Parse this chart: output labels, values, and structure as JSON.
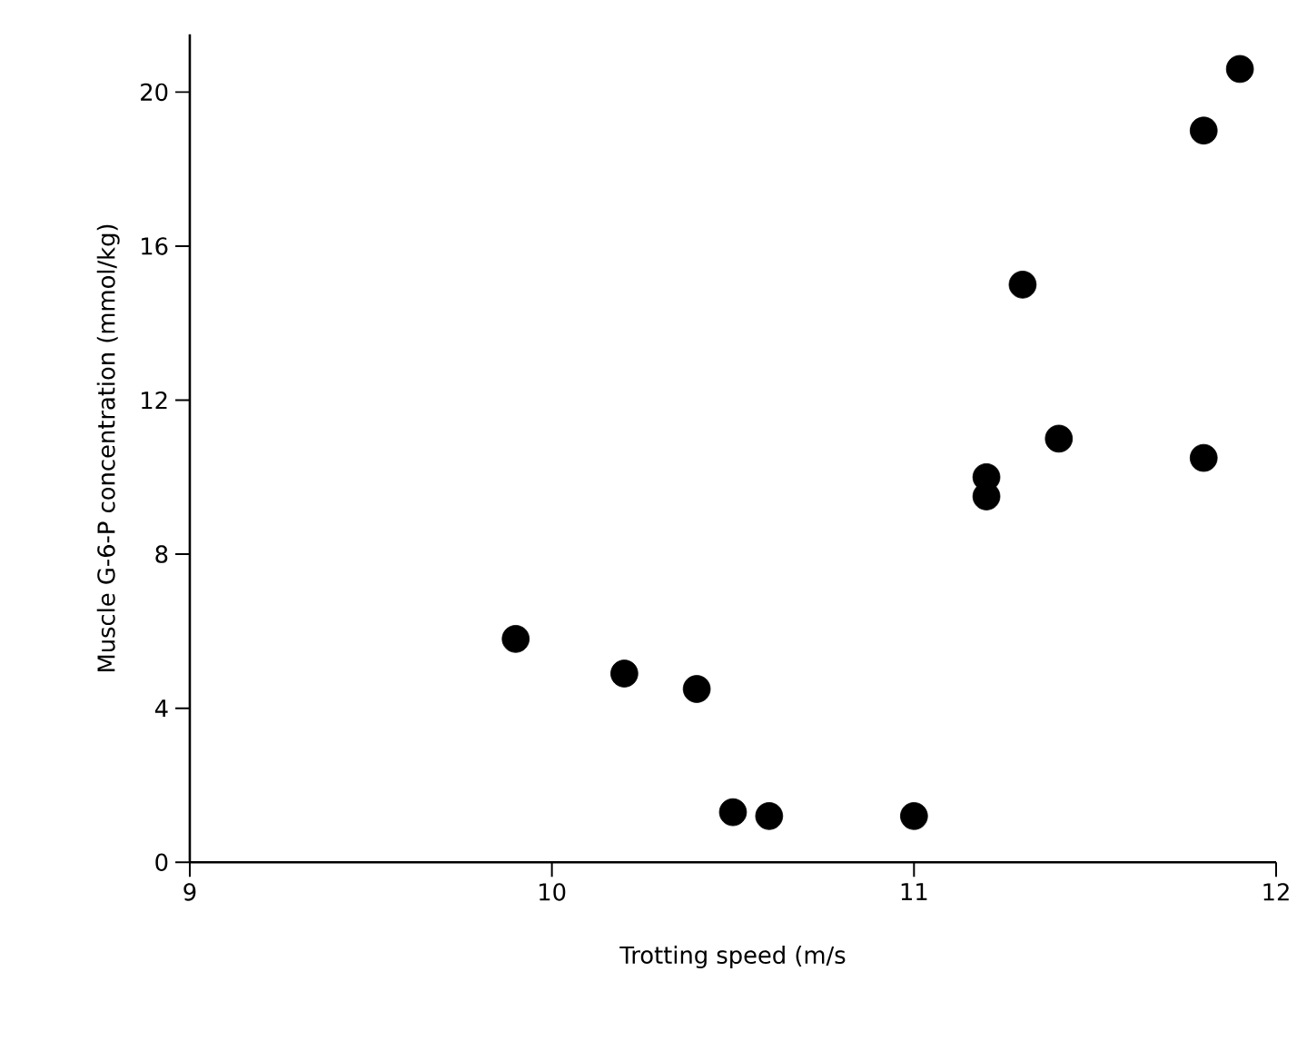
{
  "chart_data": {
    "type": "scatter",
    "xlabel": "Trotting speed  (m/s",
    "ylabel": "Muscle G-6-P concentration (mmol/kg)",
    "x": [
      9.9,
      10.2,
      10.4,
      10.5,
      10.6,
      11.0,
      11.2,
      11.2,
      11.3,
      11.4,
      11.8,
      11.8,
      11.9
    ],
    "values": [
      5.8,
      4.9,
      4.5,
      1.3,
      1.2,
      1.2,
      10.0,
      9.5,
      15.0,
      11.0,
      10.5,
      19.0,
      20.6
    ],
    "color": "#000000",
    "marker": "circle",
    "xlim": [
      9,
      12
    ],
    "ylim": [
      0,
      21.5
    ],
    "xticks": [
      9,
      10,
      11,
      12
    ],
    "yticks": [
      0,
      4,
      8,
      12,
      16,
      20
    ],
    "grid": false
  }
}
